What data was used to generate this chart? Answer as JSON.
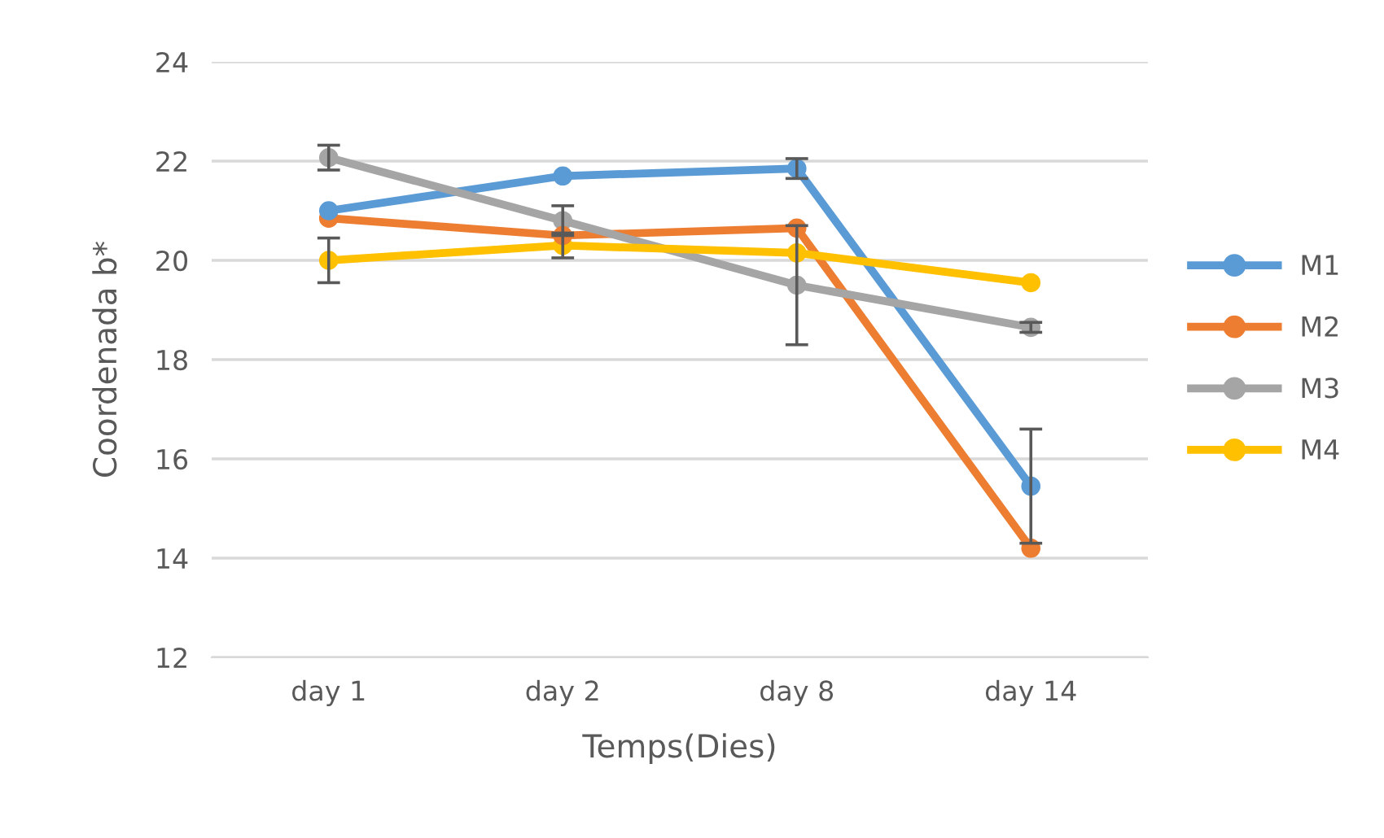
{
  "chart_data": {
    "type": "line",
    "xlabel": "Temps(Dies)",
    "ylabel": "Coordenada b*",
    "categories": [
      "day 1",
      "day 2",
      "day 8",
      "day 14"
    ],
    "series": [
      {
        "name": "M1",
        "color": "#5b9bd5",
        "values": [
          21.0,
          21.7,
          21.85,
          15.45
        ],
        "errors": [
          null,
          null,
          0.2,
          1.15
        ]
      },
      {
        "name": "M2",
        "color": "#ed7d31",
        "values": [
          20.85,
          20.5,
          20.65,
          14.2
        ]
      },
      {
        "name": "M3",
        "color": "#a5a5a5",
        "values": [
          22.07,
          20.8,
          19.5,
          18.65
        ],
        "errors": [
          0.25,
          0.3,
          1.2,
          0.1
        ]
      },
      {
        "name": "M4",
        "color": "#ffc000",
        "values": [
          20.0,
          20.3,
          20.15,
          19.55
        ],
        "errors": [
          0.45,
          0.25,
          null,
          null
        ]
      }
    ],
    "ylim": [
      12,
      24
    ],
    "yticks": [
      12,
      14,
      16,
      18,
      20,
      22,
      24
    ],
    "grid": "y",
    "legend": "right",
    "marker": "circle",
    "line_style": "solid"
  }
}
